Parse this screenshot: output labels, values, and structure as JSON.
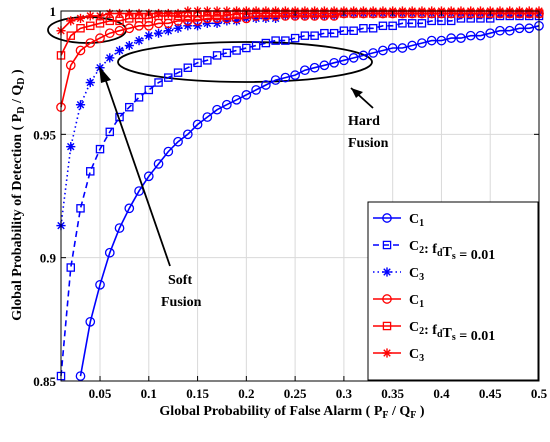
{
  "chart_data": {
    "type": "line",
    "xlabel_parts": [
      "Global Probability of False Alarm ( P",
      "F",
      " / Q",
      "F",
      " )"
    ],
    "ylabel_parts": [
      "Global Probability of Detection ( P",
      "D",
      " / Q",
      "D",
      " )"
    ],
    "xlim": [
      0.01,
      0.5
    ],
    "ylim": [
      0.85,
      1.0
    ],
    "xticks": [
      0.05,
      0.1,
      0.15,
      0.2,
      0.25,
      0.3,
      0.35,
      0.4,
      0.45,
      0.5
    ],
    "xtick_labels": [
      "0.05",
      "0.1",
      "0.15",
      "0.2",
      "0.25",
      "0.3",
      "0.35",
      "0.4",
      "0.45",
      "0.5"
    ],
    "yticks": [
      0.85,
      0.9,
      0.95,
      1.0
    ],
    "ytick_labels": [
      "0.85",
      "0.9",
      "0.95",
      "1"
    ],
    "grid": true,
    "legend_position": "bottom-right",
    "colors": {
      "hard": "#0000ff",
      "soft": "#ff0000",
      "axis": "#000000",
      "grid": "#d9d9d9"
    },
    "annotations": {
      "hard_line1": "Hard",
      "hard_line2": "Fusion",
      "soft_line1": "Soft",
      "soft_line2": "Fusion"
    },
    "series": [
      {
        "legend_main": "C",
        "legend_sub": "1",
        "legend_suffix": "",
        "color": "#0000ff",
        "line": "solid",
        "marker": "circle",
        "x": [
          0.03,
          0.04,
          0.05,
          0.06,
          0.07,
          0.08,
          0.09,
          0.1,
          0.11,
          0.12,
          0.13,
          0.14,
          0.15,
          0.16,
          0.17,
          0.18,
          0.19,
          0.2,
          0.21,
          0.22,
          0.23,
          0.24,
          0.25,
          0.26,
          0.27,
          0.28,
          0.29,
          0.3,
          0.31,
          0.32,
          0.33,
          0.34,
          0.35,
          0.36,
          0.37,
          0.38,
          0.39,
          0.4,
          0.41,
          0.42,
          0.43,
          0.44,
          0.45,
          0.46,
          0.47,
          0.48,
          0.49,
          0.5
        ],
        "y": [
          0.852,
          0.874,
          0.889,
          0.902,
          0.912,
          0.92,
          0.927,
          0.933,
          0.938,
          0.943,
          0.947,
          0.95,
          0.954,
          0.957,
          0.96,
          0.962,
          0.964,
          0.966,
          0.968,
          0.97,
          0.972,
          0.973,
          0.974,
          0.976,
          0.977,
          0.978,
          0.979,
          0.98,
          0.981,
          0.982,
          0.983,
          0.984,
          0.985,
          0.985,
          0.986,
          0.987,
          0.988,
          0.988,
          0.989,
          0.989,
          0.99,
          0.99,
          0.991,
          0.992,
          0.992,
          0.993,
          0.993,
          0.994
        ]
      },
      {
        "legend_main": "C",
        "legend_sub": "2",
        "legend_suffix": ": f",
        "legend_suffix_sub": "d",
        "legend_suffix2": "T",
        "legend_suffix2_sub": "s",
        "legend_value": " = 0.01",
        "color": "#0000ff",
        "line": "dashed",
        "marker": "square",
        "x": [
          0.01,
          0.02,
          0.03,
          0.04,
          0.05,
          0.06,
          0.07,
          0.08,
          0.09,
          0.1,
          0.11,
          0.12,
          0.13,
          0.14,
          0.15,
          0.16,
          0.17,
          0.18,
          0.19,
          0.2,
          0.21,
          0.22,
          0.23,
          0.24,
          0.25,
          0.26,
          0.27,
          0.28,
          0.29,
          0.3,
          0.31,
          0.32,
          0.33,
          0.34,
          0.35,
          0.36,
          0.37,
          0.38,
          0.39,
          0.4,
          0.41,
          0.42,
          0.43,
          0.44,
          0.45,
          0.46,
          0.47,
          0.48,
          0.49,
          0.5
        ],
        "y": [
          0.852,
          0.896,
          0.92,
          0.935,
          0.944,
          0.951,
          0.957,
          0.961,
          0.965,
          0.968,
          0.971,
          0.973,
          0.975,
          0.977,
          0.979,
          0.98,
          0.982,
          0.983,
          0.984,
          0.985,
          0.986,
          0.987,
          0.988,
          0.988,
          0.989,
          0.99,
          0.99,
          0.991,
          0.991,
          0.992,
          0.992,
          0.993,
          0.993,
          0.994,
          0.994,
          0.995,
          0.995,
          0.995,
          0.996,
          0.996,
          0.996,
          0.997,
          0.997,
          0.997,
          0.997,
          0.998,
          0.998,
          0.998,
          0.998,
          0.998
        ]
      },
      {
        "legend_main": "C",
        "legend_sub": "3",
        "legend_suffix": "",
        "color": "#0000ff",
        "line": "dotted",
        "marker": "star",
        "x": [
          0.01,
          0.02,
          0.03,
          0.04,
          0.05,
          0.06,
          0.07,
          0.08,
          0.09,
          0.1,
          0.11,
          0.12,
          0.13,
          0.14,
          0.15,
          0.16,
          0.17,
          0.18,
          0.19,
          0.2,
          0.21,
          0.22,
          0.23,
          0.24,
          0.25,
          0.26,
          0.27,
          0.28,
          0.29,
          0.3,
          0.31,
          0.32,
          0.33,
          0.34,
          0.35,
          0.36,
          0.37,
          0.38,
          0.39,
          0.4,
          0.41,
          0.42,
          0.43,
          0.44,
          0.45,
          0.46,
          0.47,
          0.48,
          0.49,
          0.5
        ],
        "y": [
          0.913,
          0.945,
          0.962,
          0.971,
          0.977,
          0.981,
          0.984,
          0.986,
          0.988,
          0.99,
          0.991,
          0.992,
          0.993,
          0.994,
          0.994,
          0.995,
          0.995,
          0.996,
          0.996,
          0.997,
          0.997,
          0.997,
          0.997,
          0.998,
          0.998,
          0.998,
          0.998,
          0.998,
          0.998,
          0.999,
          0.999,
          0.999,
          0.999,
          0.999,
          0.999,
          0.999,
          0.999,
          0.999,
          0.999,
          0.999,
          0.999,
          0.999,
          0.999,
          0.999,
          0.999,
          0.999,
          0.999,
          0.999,
          0.999,
          0.999
        ]
      },
      {
        "legend_main": "C",
        "legend_sub": "1",
        "legend_suffix": "",
        "color": "#ff0000",
        "line": "solid",
        "marker": "circle",
        "x": [
          0.01,
          0.02,
          0.03,
          0.04,
          0.05,
          0.06,
          0.07,
          0.08,
          0.09,
          0.1,
          0.11,
          0.12,
          0.13,
          0.14,
          0.15,
          0.16,
          0.17,
          0.18,
          0.19,
          0.2,
          0.21,
          0.22,
          0.23,
          0.24,
          0.25,
          0.26,
          0.27,
          0.28,
          0.29,
          0.3,
          0.31,
          0.32,
          0.33,
          0.34,
          0.35,
          0.36,
          0.37,
          0.38,
          0.39,
          0.4,
          0.41,
          0.42,
          0.43,
          0.44,
          0.45,
          0.46,
          0.47,
          0.48,
          0.49,
          0.5
        ],
        "y": [
          0.961,
          0.978,
          0.984,
          0.987,
          0.989,
          0.991,
          0.992,
          0.993,
          0.994,
          0.994,
          0.995,
          0.995,
          0.996,
          0.996,
          0.996,
          0.997,
          0.997,
          0.997,
          0.997,
          0.997,
          0.998,
          0.998,
          0.998,
          0.998,
          0.998,
          0.998,
          0.998,
          0.998,
          0.998,
          0.999,
          0.999,
          0.999,
          0.999,
          0.999,
          0.999,
          0.999,
          0.999,
          0.999,
          0.999,
          0.999,
          0.999,
          0.999,
          0.999,
          0.999,
          0.999,
          0.999,
          0.999,
          0.999,
          0.999,
          0.999
        ]
      },
      {
        "legend_main": "C",
        "legend_sub": "2",
        "legend_suffix": ": f",
        "legend_suffix_sub": "d",
        "legend_suffix2": "T",
        "legend_suffix2_sub": "s",
        "legend_value": " = 0.01",
        "color": "#ff0000",
        "line": "solid",
        "marker": "square",
        "x": [
          0.01,
          0.02,
          0.03,
          0.04,
          0.05,
          0.06,
          0.07,
          0.08,
          0.09,
          0.1,
          0.11,
          0.12,
          0.13,
          0.14,
          0.15,
          0.16,
          0.17,
          0.18,
          0.19,
          0.2,
          0.21,
          0.22,
          0.23,
          0.24,
          0.25,
          0.26,
          0.27,
          0.28,
          0.29,
          0.3,
          0.31,
          0.32,
          0.33,
          0.34,
          0.35,
          0.36,
          0.37,
          0.38,
          0.39,
          0.4,
          0.41,
          0.42,
          0.43,
          0.44,
          0.45,
          0.46,
          0.47,
          0.48,
          0.49,
          0.5
        ],
        "y": [
          0.982,
          0.99,
          0.993,
          0.994,
          0.995,
          0.996,
          0.996,
          0.997,
          0.997,
          0.997,
          0.998,
          0.998,
          0.998,
          0.998,
          0.998,
          0.998,
          0.998,
          0.998,
          0.999,
          0.999,
          0.999,
          0.999,
          0.999,
          0.999,
          0.999,
          0.999,
          0.999,
          0.999,
          0.999,
          0.999,
          0.999,
          0.999,
          0.999,
          0.999,
          0.999,
          0.999,
          0.999,
          0.999,
          0.999,
          0.999,
          0.999,
          0.999,
          0.999,
          0.999,
          0.999,
          0.999,
          0.999,
          0.999,
          0.999,
          0.999
        ]
      },
      {
        "legend_main": "C",
        "legend_sub": "3",
        "legend_suffix": "",
        "color": "#ff0000",
        "line": "solid",
        "marker": "star",
        "x": [
          0.01,
          0.02,
          0.03,
          0.04,
          0.05,
          0.06,
          0.07,
          0.08,
          0.09,
          0.1,
          0.11,
          0.12,
          0.13,
          0.14,
          0.15,
          0.16,
          0.17,
          0.18,
          0.19,
          0.2,
          0.21,
          0.22,
          0.23,
          0.24,
          0.25,
          0.26,
          0.27,
          0.28,
          0.29,
          0.3,
          0.31,
          0.32,
          0.33,
          0.34,
          0.35,
          0.36,
          0.37,
          0.38,
          0.39,
          0.4,
          0.41,
          0.42,
          0.43,
          0.44,
          0.45,
          0.46,
          0.47,
          0.48,
          0.49,
          0.5
        ],
        "y": [
          0.992,
          0.996,
          0.997,
          0.998,
          0.998,
          0.999,
          0.999,
          0.999,
          0.999,
          0.999,
          0.999,
          0.999,
          0.999,
          1.0,
          1.0,
          1.0,
          1.0,
          1.0,
          1.0,
          1.0,
          1.0,
          1.0,
          1.0,
          1.0,
          1.0,
          1.0,
          1.0,
          1.0,
          1.0,
          1.0,
          1.0,
          1.0,
          1.0,
          1.0,
          1.0,
          1.0,
          1.0,
          1.0,
          1.0,
          1.0,
          1.0,
          1.0,
          1.0,
          1.0,
          1.0,
          1.0,
          1.0,
          1.0,
          1.0,
          1.0
        ]
      }
    ]
  }
}
